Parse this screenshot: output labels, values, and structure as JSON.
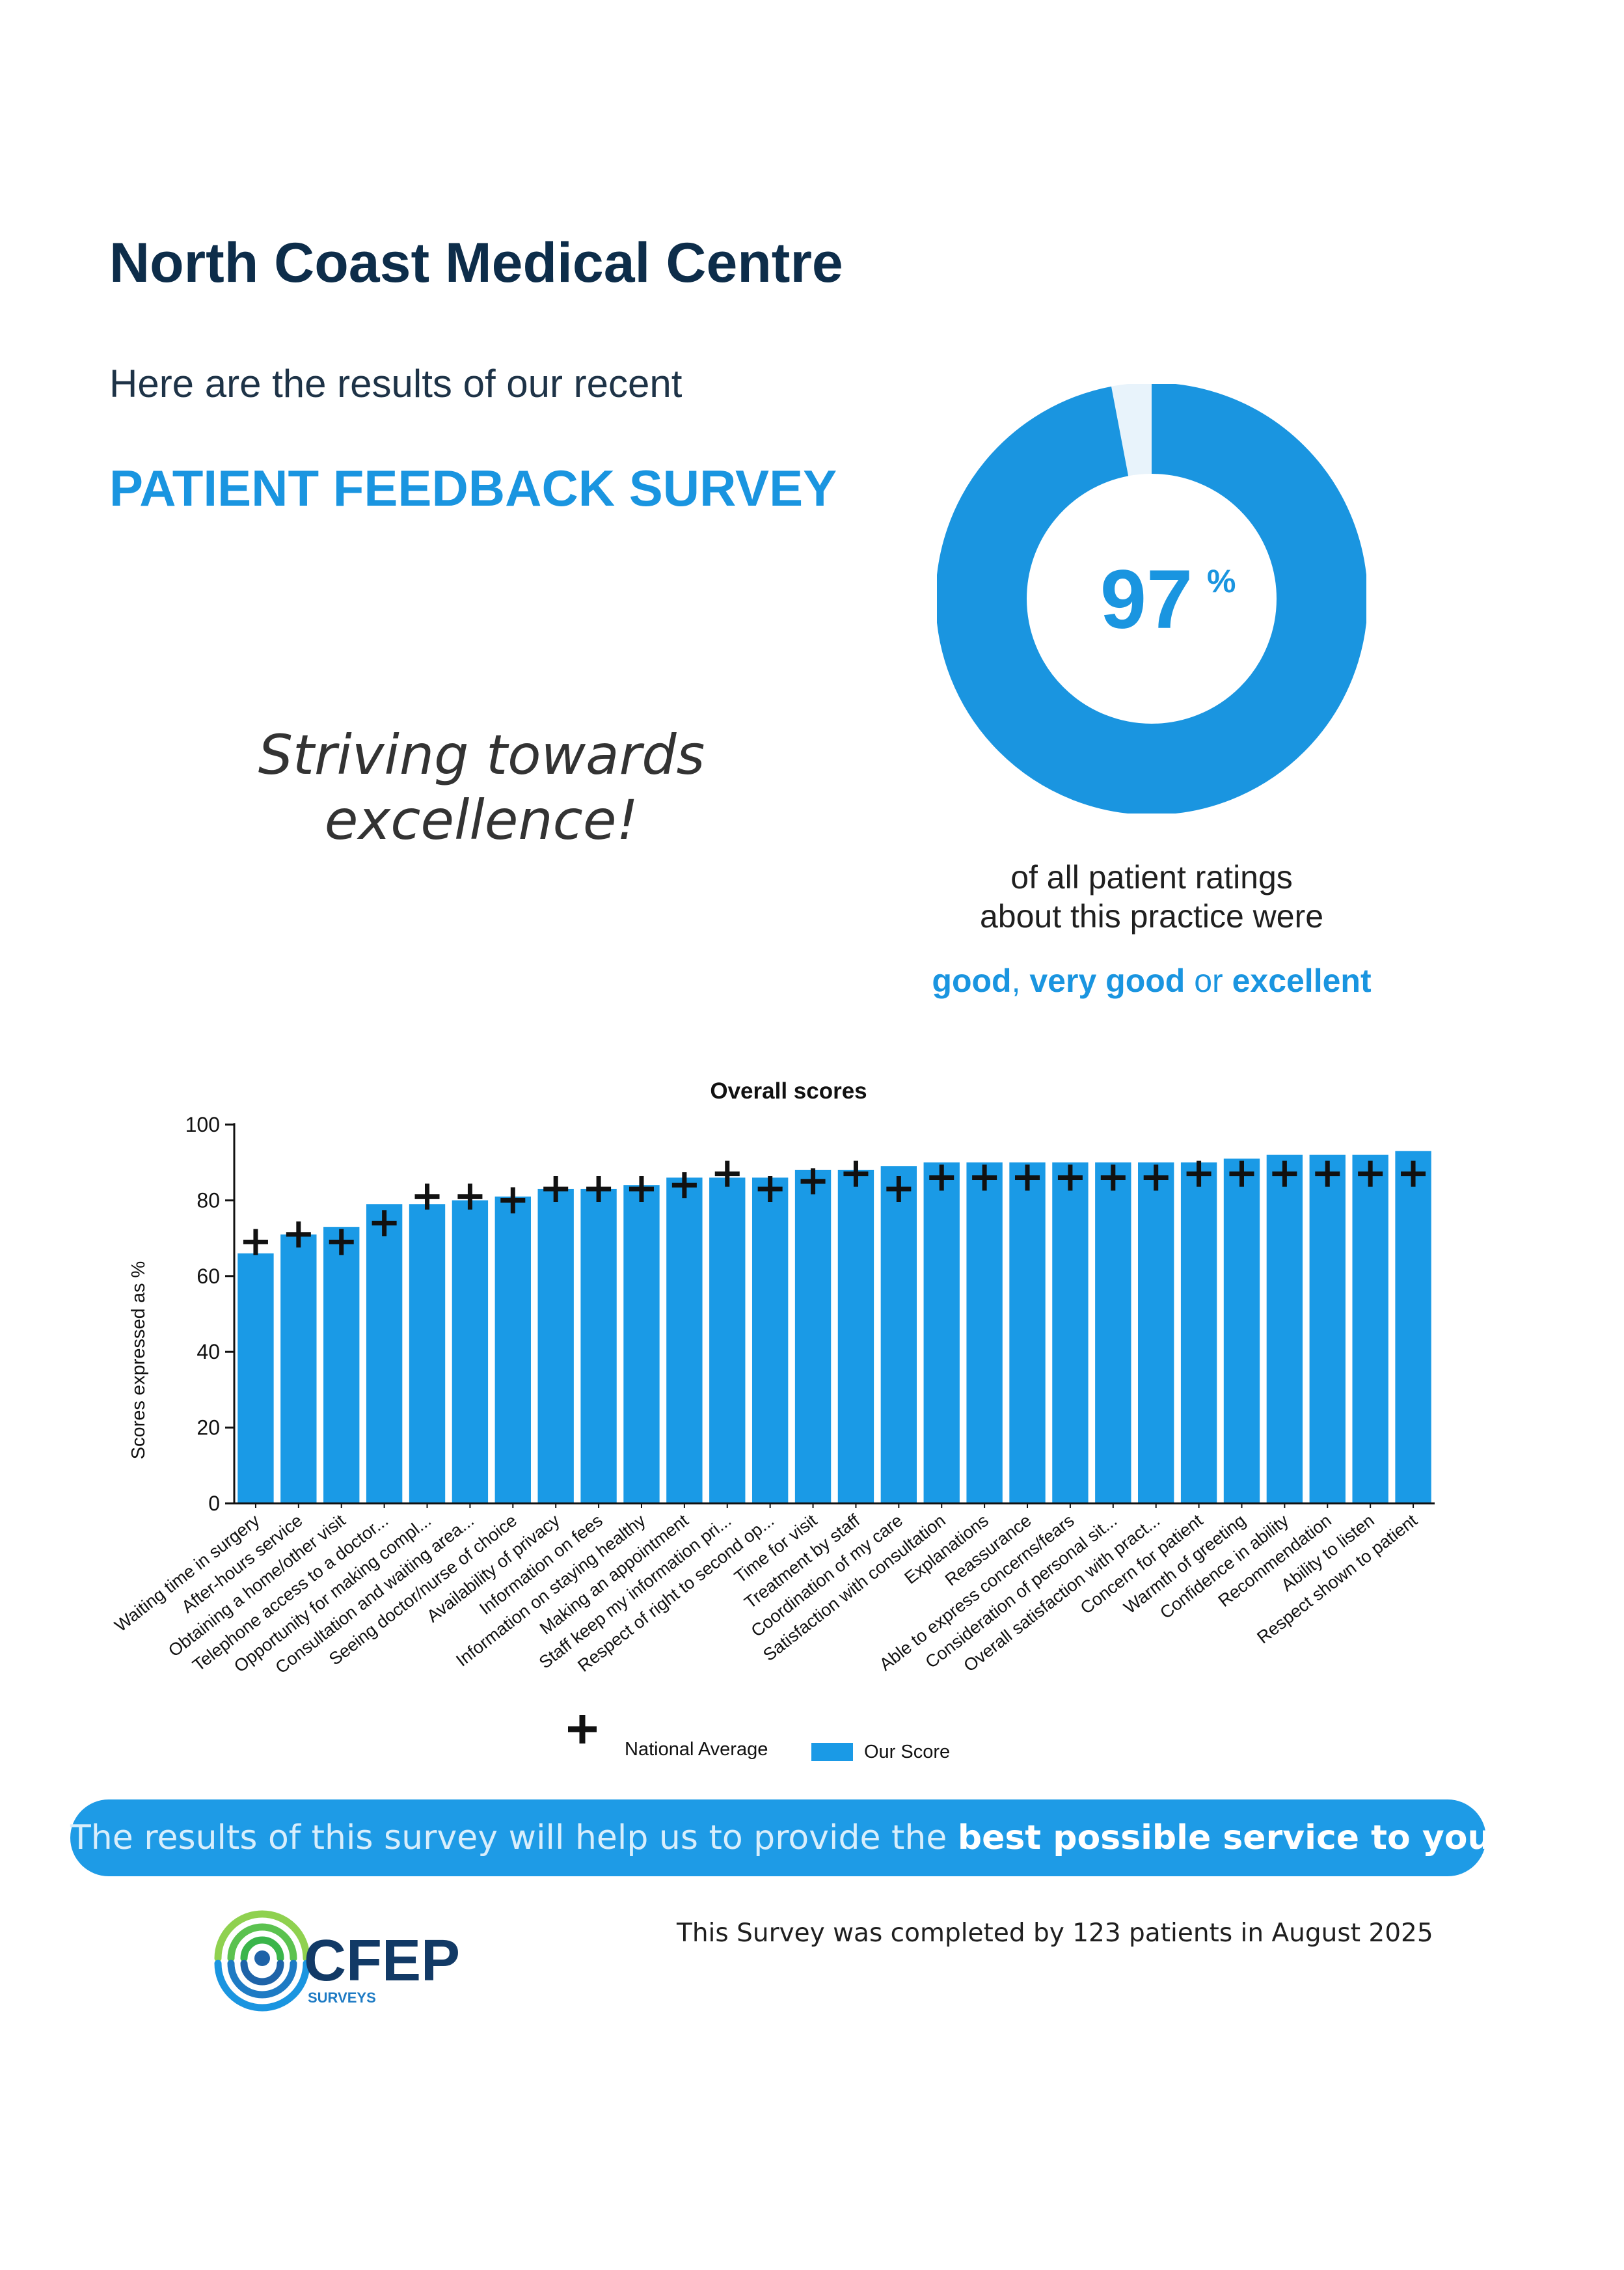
{
  "header": {
    "title": "North Coast Medical Centre",
    "intro": "Here are the results of our recent",
    "survey_title": "PATIENT FEEDBACK SURVEY",
    "tagline_line1": "Striving towards",
    "tagline_line2": "excellence!"
  },
  "donut": {
    "value": 97,
    "value_text": "97",
    "percent_sign": "%",
    "color": "#1a95e0"
  },
  "ratings": {
    "line1": "of all patient ratings",
    "line2": "about this practice were",
    "good": "good",
    "sep1": ", ",
    "very_good": "very good",
    "sep2": " or ",
    "excellent": "excellent"
  },
  "chart_data": {
    "type": "bar",
    "title": "Overall scores",
    "xlabel": "",
    "ylabel": "Scores expressed as %",
    "ylim": [
      0,
      100
    ],
    "yticks": [
      0,
      20,
      40,
      60,
      80,
      100
    ],
    "categories": [
      "Waiting time in surgery",
      "After-hours service",
      "Obtaining a home/other visit",
      "Telephone access to a doctor...",
      "Opportunity for making compl...",
      "Consultation and waiting area...",
      "Seeing doctor/nurse of choice",
      "Availability of privacy",
      "Information on fees",
      "Information on staying healthy",
      "Making an appointment",
      "Staff keep my information pri...",
      "Respect of right to second op...",
      "Time for visit",
      "Treatment by staff",
      "Coordination of my care",
      "Satisfaction with consultation",
      "Explanations",
      "Reassurance",
      "Able to express concerns/fears",
      "Consideration of personal sit...",
      "Overall satisfaction with pract...",
      "Concern for patient",
      "Warmth of greeting",
      "Confidence in ability",
      "Recommendation",
      "Ability to listen",
      "Respect shown to patient"
    ],
    "series": [
      {
        "name": "Our Score",
        "color": "#1a9ae6",
        "values": [
          66,
          71,
          73,
          79,
          79,
          80,
          81,
          83,
          83,
          84,
          86,
          86,
          86,
          88,
          88,
          89,
          90,
          90,
          90,
          90,
          90,
          90,
          90,
          91,
          92,
          92,
          92,
          93
        ]
      },
      {
        "name": "National Average",
        "marker": "plus",
        "values": [
          69,
          71,
          69,
          74,
          81,
          81,
          80,
          83,
          83,
          83,
          84,
          87,
          83,
          85,
          87,
          83,
          86,
          86,
          86,
          86,
          86,
          86,
          87,
          87,
          87,
          87,
          87,
          87
        ]
      }
    ],
    "legend": {
      "national": "National Average",
      "ours": "Our Score",
      "placement": "bottom-center"
    }
  },
  "banner": {
    "text_plain": "The results of this survey will help us to provide the ",
    "text_bold": "best possible service to you"
  },
  "logo": {
    "name": "CFEP",
    "sub": "SURVEYS"
  },
  "footer": {
    "completed": "This Survey was completed by 123 patients in August 2025"
  }
}
